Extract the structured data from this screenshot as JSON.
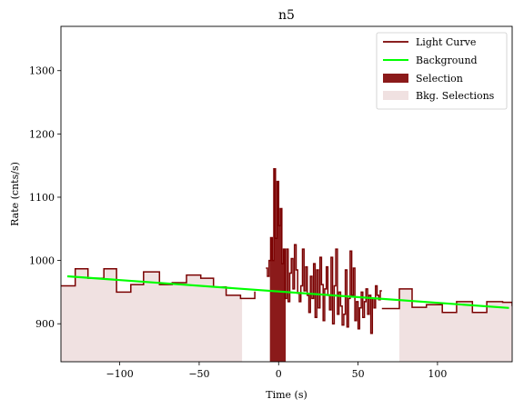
{
  "chart_data": {
    "type": "line",
    "title": "n5",
    "xlabel": "Time (s)",
    "ylabel": "Rate (cnts/s)",
    "xlim": [
      -137,
      147
    ],
    "ylim": [
      840,
      1370
    ],
    "xticks": [
      -100,
      -50,
      0,
      50,
      100
    ],
    "yticks": [
      900,
      1000,
      1100,
      1200,
      1300
    ],
    "legend_position": "top-right",
    "legend": [
      "Light Curve",
      "Background",
      "Selection",
      "Bkg. Selections"
    ],
    "colors": {
      "light_curve": "#7a0000",
      "background": "#00ff00",
      "selection": "#8b1a1a",
      "bkg_selection": "#f0e1e1"
    },
    "bkg_selections": [
      [
        -137,
        -23
      ],
      [
        76,
        147
      ]
    ],
    "selection": [
      -5.5,
      4.5
    ],
    "background_line": {
      "x": [
        -133,
        145
      ],
      "y": [
        975,
        925
      ]
    },
    "light_curve_coarse_left": {
      "edges": [
        -137,
        -128,
        -120,
        -110,
        -102,
        -93,
        -85,
        -75,
        -67,
        -58,
        -49,
        -41,
        -33,
        -24,
        -15
      ],
      "values": [
        960,
        987,
        972,
        987,
        950,
        962,
        982,
        962,
        965,
        977,
        972,
        958,
        945,
        940,
        951
      ]
    },
    "light_curve_fine": {
      "edges": [
        -8,
        -7,
        -6,
        -5,
        -4,
        -3,
        -2,
        -1,
        0,
        1,
        2,
        3,
        4,
        5,
        6,
        7,
        8,
        9,
        10,
        11,
        12,
        13,
        14,
        15,
        16,
        17,
        18,
        19,
        20,
        21,
        22,
        23,
        24,
        25,
        26,
        27,
        28,
        29,
        30,
        31,
        32,
        33,
        34,
        35,
        36,
        37,
        38,
        39,
        40,
        41,
        42,
        43,
        44,
        45,
        46,
        47,
        48,
        49,
        50,
        51,
        52,
        53,
        54,
        55,
        56,
        57,
        58,
        59,
        60,
        61,
        62,
        63,
        64,
        65
      ],
      "values": [
        988,
        975,
        1000,
        1036,
        1000,
        1145,
        1035,
        1125,
        1055,
        1082,
        995,
        1018,
        940,
        1018,
        935,
        980,
        1003,
        955,
        1025,
        985,
        948,
        935,
        960,
        1018,
        952,
        990,
        945,
        918,
        975,
        940,
        995,
        910,
        985,
        925,
        1005,
        962,
        905,
        955,
        990,
        945,
        922,
        1005,
        900,
        960,
        1018,
        915,
        950,
        928,
        898,
        915,
        985,
        895,
        940,
        1015,
        945,
        988,
        905,
        935,
        892,
        925,
        950,
        910,
        935,
        955,
        915,
        945,
        885,
        940,
        925,
        960,
        945,
        938,
        952
      ]
    },
    "light_curve_coarse_right": {
      "edges": [
        65,
        76,
        84,
        93,
        103,
        112,
        122,
        131,
        141,
        147
      ],
      "values": [
        924,
        955,
        926,
        930,
        918,
        935,
        918,
        935,
        934,
        928
      ]
    }
  }
}
